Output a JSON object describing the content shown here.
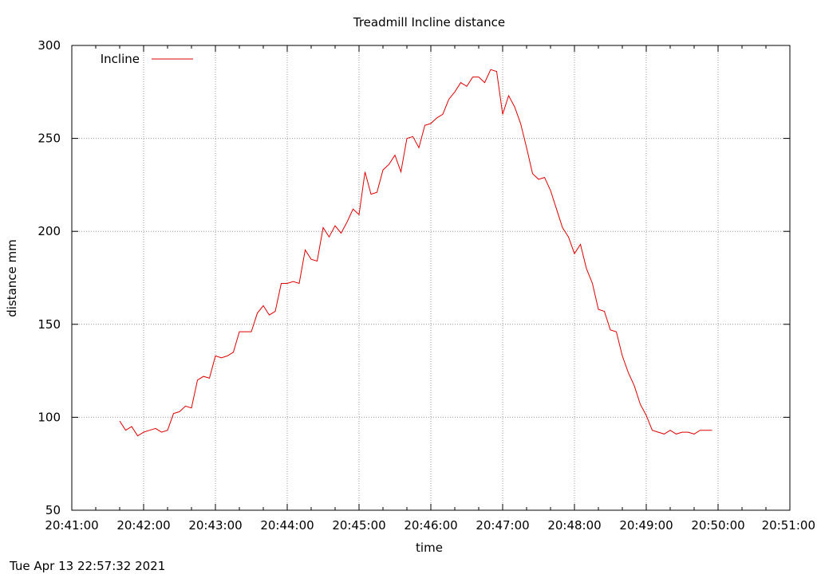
{
  "chart_data": {
    "type": "line",
    "title": "Treadmill Incline distance",
    "xlabel": "time",
    "ylabel": "distance mm",
    "ylim": [
      50,
      300
    ],
    "yticks": [
      50,
      100,
      150,
      200,
      250,
      300
    ],
    "xlim": [
      "20:41:00",
      "20:51:00"
    ],
    "xticks": [
      "20:41:00",
      "20:42:00",
      "20:43:00",
      "20:44:00",
      "20:45:00",
      "20:46:00",
      "20:47:00",
      "20:48:00",
      "20:49:00",
      "20:50:00",
      "20:51:00"
    ],
    "grid": true,
    "legend_position": "top-left",
    "series": [
      {
        "name": "Incline",
        "color": "#dd0000",
        "points": [
          [
            "20:41:40",
            98
          ],
          [
            "20:41:45",
            93
          ],
          [
            "20:41:50",
            95
          ],
          [
            "20:41:55",
            90
          ],
          [
            "20:42:00",
            92
          ],
          [
            "20:42:05",
            93
          ],
          [
            "20:42:10",
            94
          ],
          [
            "20:42:15",
            92
          ],
          [
            "20:42:20",
            93
          ],
          [
            "20:42:25",
            102
          ],
          [
            "20:42:30",
            103
          ],
          [
            "20:42:35",
            106
          ],
          [
            "20:42:40",
            105
          ],
          [
            "20:42:45",
            120
          ],
          [
            "20:42:50",
            122
          ],
          [
            "20:42:55",
            121
          ],
          [
            "20:43:00",
            133
          ],
          [
            "20:43:05",
            132
          ],
          [
            "20:43:10",
            133
          ],
          [
            "20:43:15",
            135
          ],
          [
            "20:43:20",
            146
          ],
          [
            "20:43:25",
            146
          ],
          [
            "20:43:30",
            146
          ],
          [
            "20:43:35",
            156
          ],
          [
            "20:43:40",
            160
          ],
          [
            "20:43:45",
            155
          ],
          [
            "20:43:50",
            157
          ],
          [
            "20:43:55",
            172
          ],
          [
            "20:44:00",
            172
          ],
          [
            "20:44:05",
            173
          ],
          [
            "20:44:10",
            172
          ],
          [
            "20:44:15",
            190
          ],
          [
            "20:44:20",
            185
          ],
          [
            "20:44:25",
            184
          ],
          [
            "20:44:30",
            202
          ],
          [
            "20:44:35",
            197
          ],
          [
            "20:44:40",
            203
          ],
          [
            "20:44:45",
            199
          ],
          [
            "20:44:50",
            205
          ],
          [
            "20:44:55",
            212
          ],
          [
            "20:45:00",
            209
          ],
          [
            "20:45:05",
            232
          ],
          [
            "20:45:10",
            220
          ],
          [
            "20:45:15",
            221
          ],
          [
            "20:45:20",
            233
          ],
          [
            "20:45:25",
            236
          ],
          [
            "20:45:30",
            241
          ],
          [
            "20:45:35",
            232
          ],
          [
            "20:45:40",
            250
          ],
          [
            "20:45:45",
            251
          ],
          [
            "20:45:50",
            245
          ],
          [
            "20:45:55",
            257
          ],
          [
            "20:46:00",
            258
          ],
          [
            "20:46:05",
            261
          ],
          [
            "20:46:10",
            263
          ],
          [
            "20:46:15",
            271
          ],
          [
            "20:46:20",
            275
          ],
          [
            "20:46:25",
            280
          ],
          [
            "20:46:30",
            278
          ],
          [
            "20:46:35",
            283
          ],
          [
            "20:46:40",
            283
          ],
          [
            "20:46:45",
            280
          ],
          [
            "20:46:50",
            287
          ],
          [
            "20:46:55",
            286
          ],
          [
            "20:47:00",
            263
          ],
          [
            "20:47:05",
            273
          ],
          [
            "20:47:10",
            267
          ],
          [
            "20:47:15",
            258
          ],
          [
            "20:47:20",
            245
          ],
          [
            "20:47:25",
            231
          ],
          [
            "20:47:30",
            228
          ],
          [
            "20:47:35",
            229
          ],
          [
            "20:47:40",
            222
          ],
          [
            "20:47:45",
            212
          ],
          [
            "20:47:50",
            202
          ],
          [
            "20:47:55",
            197
          ],
          [
            "20:48:00",
            188
          ],
          [
            "20:48:05",
            193
          ],
          [
            "20:48:10",
            180
          ],
          [
            "20:48:15",
            172
          ],
          [
            "20:48:20",
            158
          ],
          [
            "20:48:25",
            157
          ],
          [
            "20:48:30",
            147
          ],
          [
            "20:48:35",
            146
          ],
          [
            "20:48:40",
            133
          ],
          [
            "20:48:45",
            124
          ],
          [
            "20:48:50",
            117
          ],
          [
            "20:48:55",
            107
          ],
          [
            "20:49:00",
            101
          ],
          [
            "20:49:05",
            93
          ],
          [
            "20:49:10",
            92
          ],
          [
            "20:49:15",
            91
          ],
          [
            "20:49:20",
            93
          ],
          [
            "20:49:25",
            91
          ],
          [
            "20:49:30",
            92
          ],
          [
            "20:49:35",
            92
          ],
          [
            "20:49:40",
            91
          ],
          [
            "20:49:45",
            93
          ],
          [
            "20:49:50",
            93
          ],
          [
            "20:49:55",
            93
          ]
        ]
      }
    ]
  },
  "footer": {
    "timestamp": "Tue Apr 13 22:57:32 2021"
  }
}
